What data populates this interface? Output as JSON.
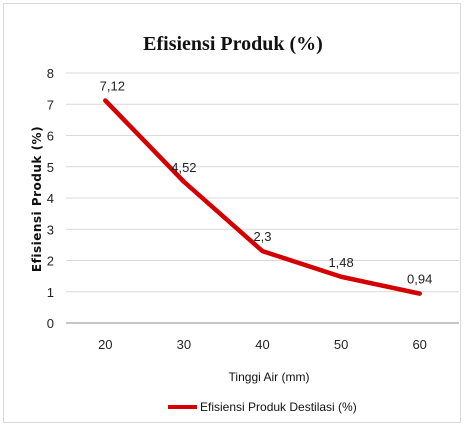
{
  "chart_data": {
    "type": "line",
    "title": "Efisiensi Produk (%)",
    "xlabel": "Tinggi Air (mm)",
    "ylabel": "Efisiensi Produk (%)",
    "categories": [
      "20",
      "30",
      "40",
      "50",
      "60"
    ],
    "series": [
      {
        "name": "Efisiensi Produk Destilasi (%)",
        "values": [
          7.12,
          4.52,
          2.3,
          1.48,
          0.94
        ],
        "labels": [
          "7,12",
          "4,52",
          "2,3",
          "1,48",
          "0,94"
        ],
        "color": "#d40000"
      }
    ],
    "ylim": [
      0,
      8
    ],
    "yticks": [
      "0",
      "1",
      "2",
      "3",
      "4",
      "5",
      "6",
      "7",
      "8"
    ],
    "grid": true,
    "legend": "bottom"
  }
}
